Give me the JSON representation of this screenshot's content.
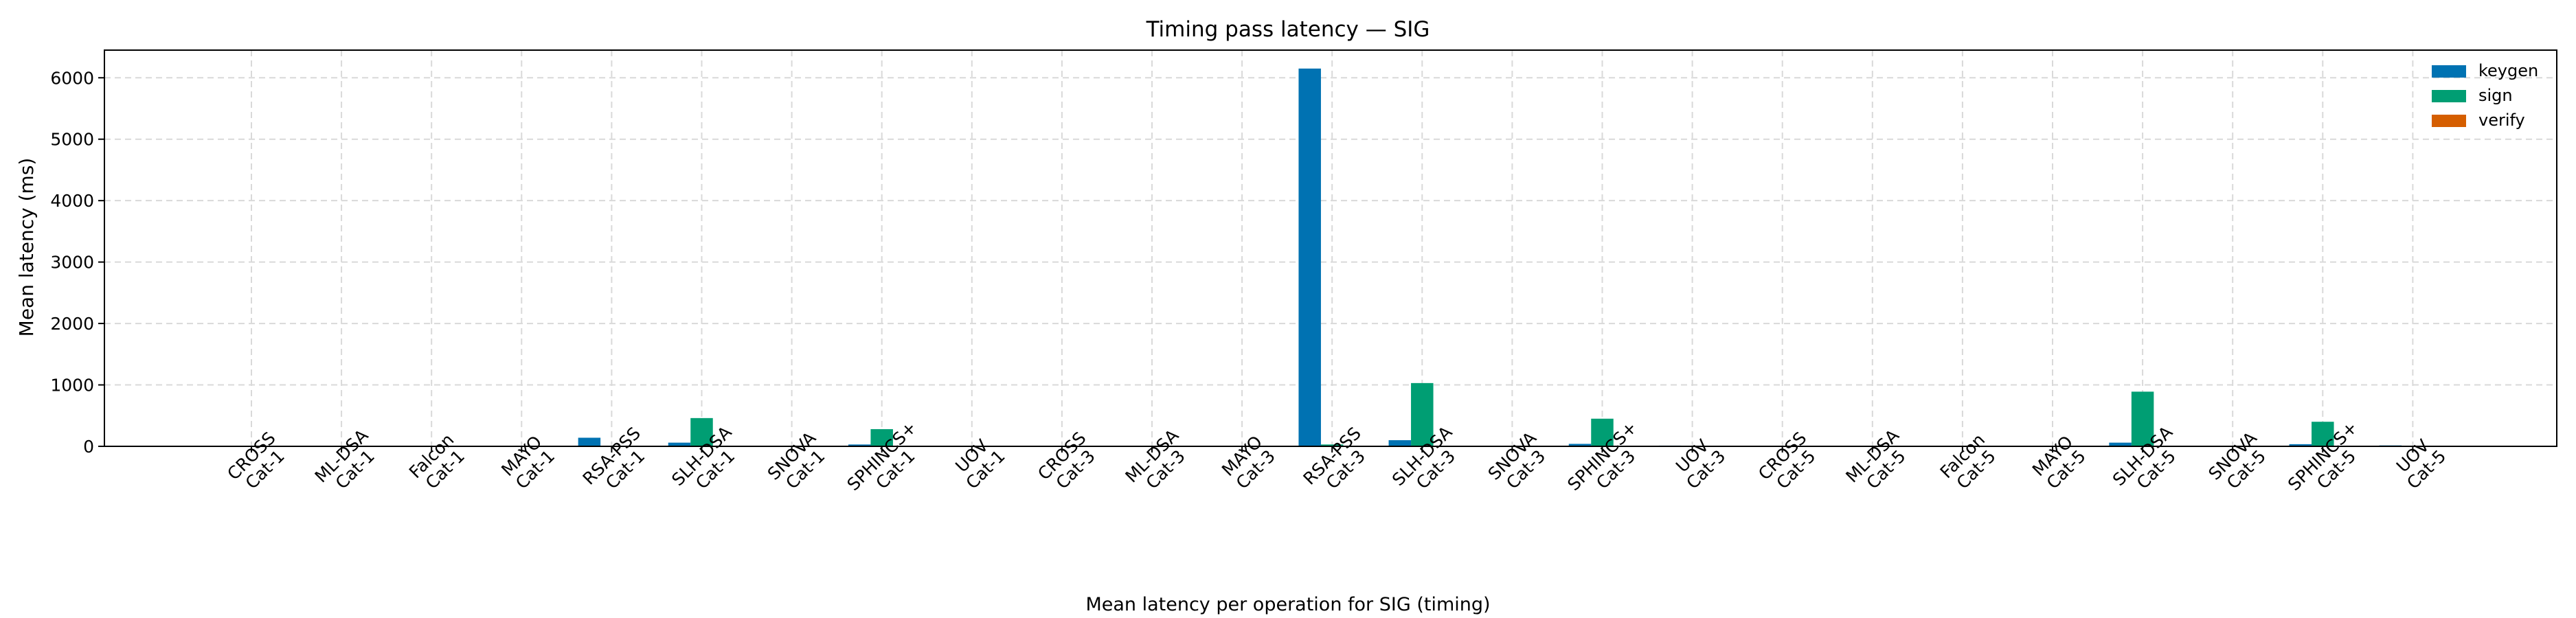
{
  "chart_data": {
    "type": "bar",
    "title": "Timing pass latency — SIG",
    "xlabel": "Mean latency per operation for SIG (timing)",
    "ylabel": "Mean latency (ms)",
    "ylim": [
      0,
      6450
    ],
    "yticks": [
      0,
      1000,
      2000,
      3000,
      4000,
      5000,
      6000
    ],
    "grid": true,
    "legend_position": "top-right",
    "categories": [
      [
        "CROSS",
        "Cat-1"
      ],
      [
        "ML-DSA",
        "Cat-1"
      ],
      [
        "Falcon",
        "Cat-1"
      ],
      [
        "MAYO",
        "Cat-1"
      ],
      [
        "RSA-PSS",
        "Cat-1"
      ],
      [
        "SLH-DSA",
        "Cat-1"
      ],
      [
        "SNOVA",
        "Cat-1"
      ],
      [
        "SPHINCS+",
        "Cat-1"
      ],
      [
        "UOV",
        "Cat-1"
      ],
      [
        "CROSS",
        "Cat-3"
      ],
      [
        "ML-DSA",
        "Cat-3"
      ],
      [
        "MAYO",
        "Cat-3"
      ],
      [
        "RSA-PSS",
        "Cat-3"
      ],
      [
        "SLH-DSA",
        "Cat-3"
      ],
      [
        "SNOVA",
        "Cat-3"
      ],
      [
        "SPHINCS+",
        "Cat-3"
      ],
      [
        "UOV",
        "Cat-3"
      ],
      [
        "CROSS",
        "Cat-5"
      ],
      [
        "ML-DSA",
        "Cat-5"
      ],
      [
        "Falcon",
        "Cat-5"
      ],
      [
        "MAYO",
        "Cat-5"
      ],
      [
        "SLH-DSA",
        "Cat-5"
      ],
      [
        "SNOVA",
        "Cat-5"
      ],
      [
        "SPHINCS+",
        "Cat-5"
      ],
      [
        "UOV",
        "Cat-5"
      ]
    ],
    "series": [
      {
        "name": "keygen",
        "color": "#0072b2",
        "values": [
          0,
          0,
          3,
          0,
          140,
          60,
          2,
          30,
          10,
          0,
          0,
          0,
          6150,
          100,
          3,
          40,
          12,
          0,
          0,
          8,
          0,
          60,
          5,
          35,
          15
        ]
      },
      {
        "name": "sign",
        "color": "#009e73",
        "values": [
          1,
          0,
          1,
          0,
          5,
          460,
          2,
          280,
          0,
          1,
          0,
          0,
          30,
          1030,
          2,
          450,
          0,
          1,
          0,
          2,
          1,
          890,
          3,
          400,
          0
        ]
      },
      {
        "name": "verify",
        "color": "#d55e00",
        "values": [
          1,
          0,
          0,
          0,
          0,
          1,
          1,
          1,
          0,
          1,
          0,
          0,
          0,
          1,
          1,
          1,
          0,
          1,
          0,
          0,
          0,
          1,
          2,
          1,
          0
        ]
      }
    ]
  }
}
